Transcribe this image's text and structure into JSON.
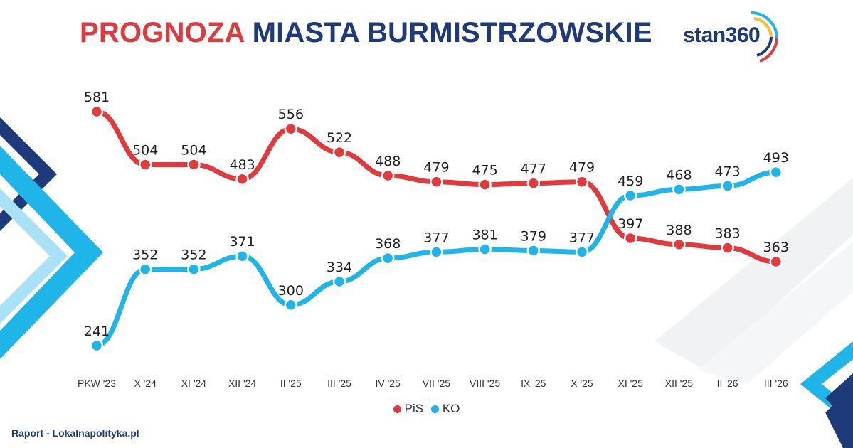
{
  "header": {
    "title_part1": "PROGNOZA",
    "title_part2": "MIASTA BURMISTRZOWSKIE",
    "logo_text": "stan360"
  },
  "footer": {
    "source": "Raport - Lokalnapolityka.pl"
  },
  "chart_data": {
    "type": "line",
    "title": "PROGNOZA MIASTA BURMISTRZOWSKIE",
    "categories": [
      "PKW '23",
      "X '24",
      "XI '24",
      "XII '24",
      "II '25",
      "III '25",
      "IV '25",
      "VII '25",
      "VIII '25",
      "IX '25",
      "X '25",
      "XI '25",
      "XII '25",
      "II '26",
      "III '26"
    ],
    "series": [
      {
        "name": "PiS",
        "color": "#e03a3e",
        "values": [
          581,
          504,
          504,
          483,
          556,
          522,
          488,
          479,
          475,
          477,
          479,
          397,
          388,
          383,
          363
        ]
      },
      {
        "name": "KO",
        "color": "#1fb5e8",
        "values": [
          241,
          352,
          352,
          371,
          300,
          334,
          368,
          377,
          381,
          379,
          377,
          459,
          468,
          473,
          493
        ]
      }
    ],
    "ylim": [
      210,
      600
    ],
    "grid": false,
    "legend_position": "bottom-center",
    "xlabel": "",
    "ylabel": ""
  }
}
